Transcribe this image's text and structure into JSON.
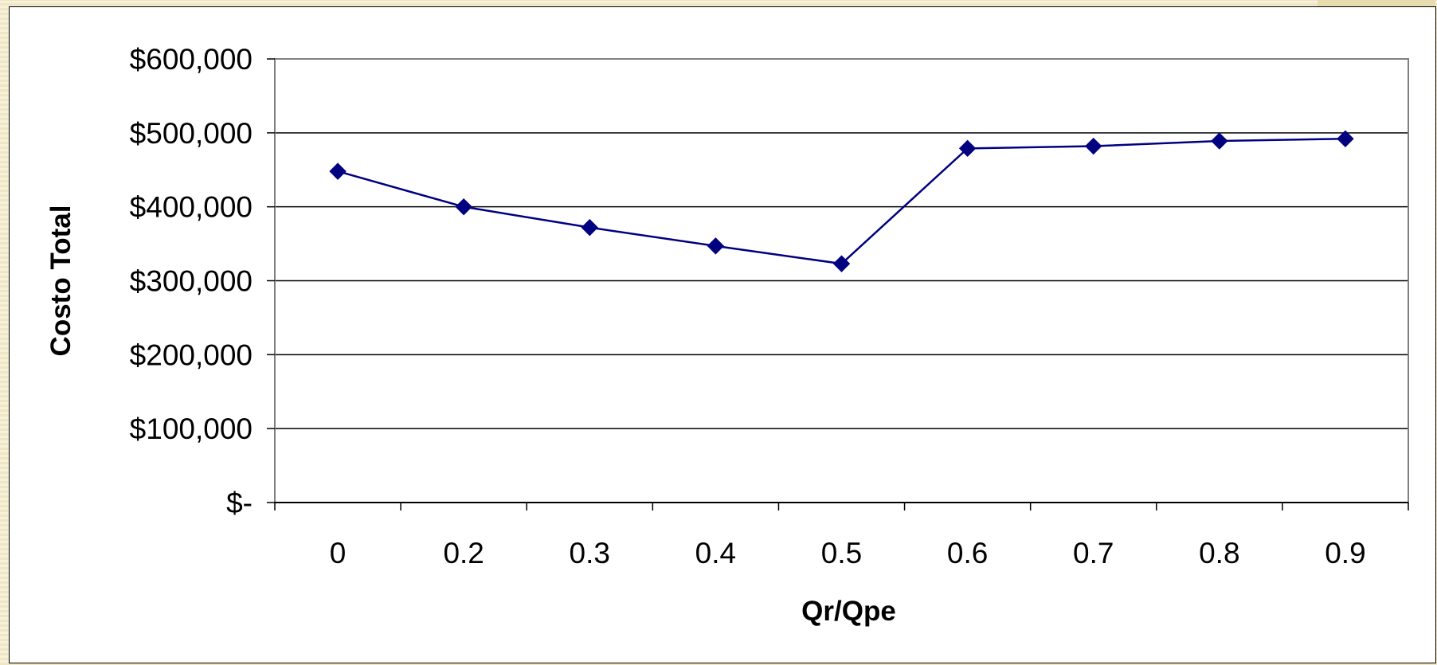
{
  "chart_data": {
    "type": "line",
    "title": "",
    "xlabel": "Qr/Qpe",
    "ylabel": "Costo Total",
    "categories": [
      "0",
      "0.2",
      "0.3",
      "0.4",
      "0.5",
      "0.6",
      "0.7",
      "0.8",
      "0.9"
    ],
    "series": [
      {
        "values": [
          448000,
          400000,
          372000,
          347000,
          323000,
          479000,
          482000,
          489000,
          492000
        ]
      }
    ],
    "ylim": [
      0,
      600000
    ],
    "yticks": [
      0,
      100000,
      200000,
      300000,
      400000,
      500000,
      600000
    ],
    "ytick_labels": [
      "$-",
      "$100,000",
      "$200,000",
      "$300,000",
      "$400,000",
      "$500,000",
      "$600,000"
    ],
    "grid": "horizontal",
    "legend": "none",
    "marker": "diamond",
    "colors": {
      "series": "#000080",
      "grid": "#000000",
      "plot_border": "#808080",
      "background": "#ffffff"
    }
  }
}
